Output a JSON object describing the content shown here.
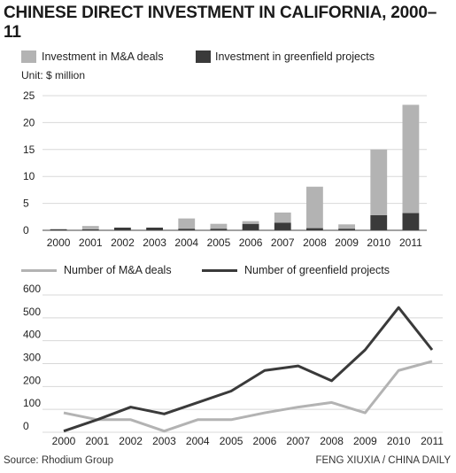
{
  "title": "CHINESE DIRECT INVESTMENT IN CALIFORNIA, 2000–11",
  "unit": "Unit: $ million",
  "colors": {
    "ma": "#b3b3b3",
    "greenfield": "#3a3a3a",
    "grid": "#d8d8d8"
  },
  "chart_data": [
    {
      "type": "bar",
      "stacked": true,
      "categories": [
        "2000",
        "2001",
        "2002",
        "2003",
        "2004",
        "2005",
        "2006",
        "2007",
        "2008",
        "2009",
        "2010",
        "2011"
      ],
      "series": [
        {
          "name": "Investment in greenfield projects",
          "values": [
            0.2,
            0.2,
            0.5,
            0.5,
            0.3,
            0.3,
            1.2,
            1.4,
            0.4,
            0.3,
            2.8,
            3.2
          ]
        },
        {
          "name": "Investment in M&A deals",
          "values": [
            0.0,
            0.6,
            0.0,
            0.0,
            1.9,
            0.9,
            0.5,
            1.9,
            7.7,
            0.8,
            12.2,
            20.1
          ]
        }
      ],
      "ylim": [
        0,
        25
      ],
      "yticks": [
        "0",
        "5",
        "10",
        "15",
        "20",
        "25"
      ]
    },
    {
      "type": "line",
      "categories": [
        "2000",
        "2001",
        "2002",
        "2003",
        "2004",
        "2005",
        "2006",
        "2007",
        "2008",
        "2009",
        "2010",
        "2011"
      ],
      "series": [
        {
          "name": "Number of M&A deals",
          "values": [
            85,
            55,
            55,
            5,
            55,
            55,
            85,
            110,
            130,
            85,
            270,
            310
          ]
        },
        {
          "name": "Number of greenfield projects",
          "values": [
            5,
            55,
            110,
            80,
            130,
            180,
            270,
            290,
            225,
            360,
            545,
            360
          ]
        }
      ],
      "ylim": [
        0,
        600
      ],
      "yticks": [
        "0",
        "100",
        "200",
        "300",
        "400",
        "500",
        "600"
      ]
    }
  ],
  "footer": {
    "source": "Source: Rhodium Group",
    "credit": "FENG XIUXIA / CHINA DAILY"
  }
}
